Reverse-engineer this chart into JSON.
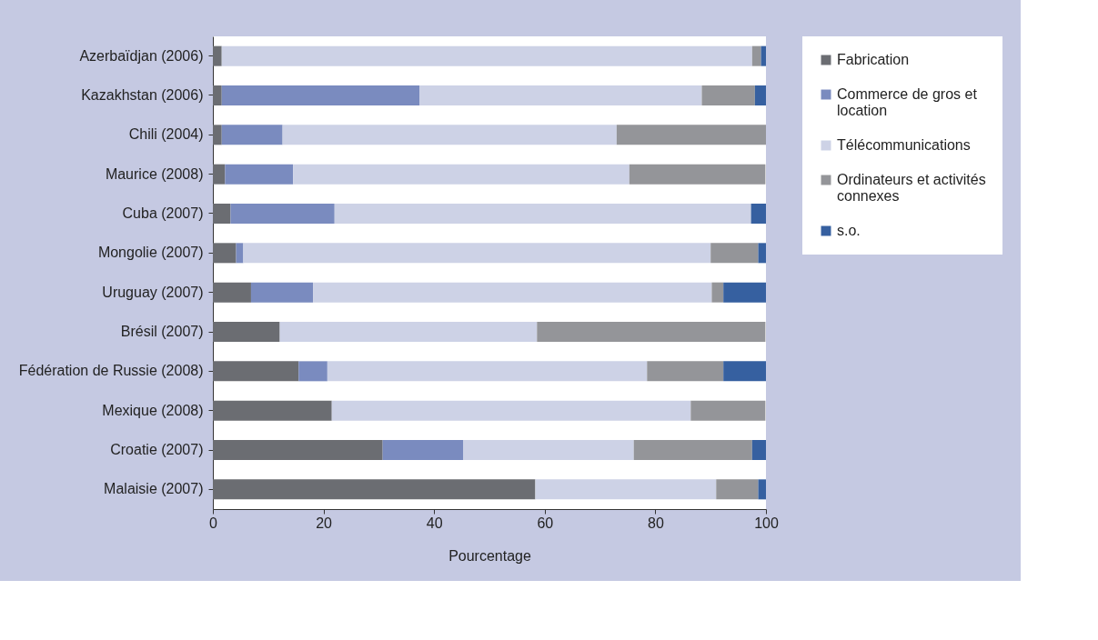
{
  "chart_data": {
    "type": "bar",
    "orientation": "horizontal",
    "stacked": true,
    "xlabel": "Pourcentage",
    "categories": [
      "Azerbaïdjan (2006)",
      "Kazakhstan (2006)",
      "Chili (2004)",
      "Maurice (2008)",
      "Cuba (2007)",
      "Mongolie (2007)",
      "Uruguay (2007)",
      "Brésil (2007)",
      "Fédération de Russie (2008)",
      "Mexique (2008)",
      "Croatie (2007)",
      "Malaisie (2007)"
    ],
    "series": [
      {
        "name": "Fabrication",
        "color": "#6b6d72",
        "values": [
          1.6,
          1.6,
          1.6,
          2.2,
          3.2,
          4.2,
          6.9,
          12.1,
          15.5,
          21.5,
          30.7,
          58.3
        ]
      },
      {
        "name": "Commerce de gros et location",
        "color": "#7a8bbf",
        "values": [
          0,
          35.8,
          11.0,
          12.3,
          18.8,
          1.3,
          11.2,
          0,
          5.2,
          0,
          14.6,
          0
        ]
      },
      {
        "name": "Télécommunications",
        "color": "#cdd2e6",
        "values": [
          95.9,
          51.0,
          60.4,
          60.8,
          75.3,
          84.5,
          72.1,
          46.5,
          57.8,
          64.9,
          30.8,
          32.7
        ]
      },
      {
        "name": "Ordinateurs et activités connexes",
        "color": "#949599",
        "values": [
          1.6,
          9.6,
          27.0,
          24.6,
          0,
          8.6,
          2.1,
          41.3,
          13.8,
          13.5,
          21.4,
          7.6
        ]
      },
      {
        "name": "s.o.",
        "color": "#3660a0",
        "values": [
          0.9,
          2.0,
          0,
          0,
          2.7,
          1.4,
          7.7,
          0,
          7.7,
          0,
          2.5,
          1.4
        ]
      }
    ],
    "xlim": [
      0,
      100
    ],
    "xticks": [
      0,
      20,
      40,
      60,
      80,
      100
    ],
    "grid": false,
    "legend": "right"
  }
}
